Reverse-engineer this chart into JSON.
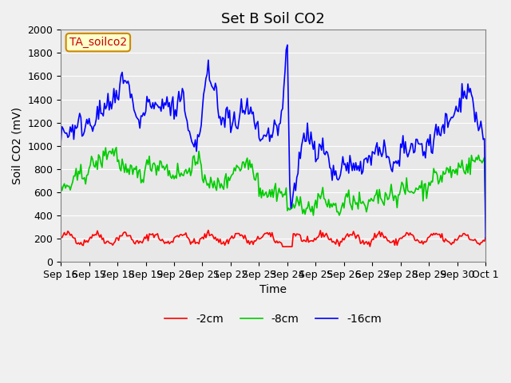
{
  "title": "Set B Soil CO2",
  "ylabel": "Soil CO2 (mV)",
  "xlabel": "Time",
  "ylim": [
    0,
    2000
  ],
  "legend_label": "TA_soilco2",
  "series_labels": [
    "-2cm",
    "-8cm",
    "-16cm"
  ],
  "series_colors": [
    "#ff0000",
    "#00cc00",
    "#0000ff"
  ],
  "xtick_labels": [
    "Sep 16",
    "Sep 17",
    "Sep 18",
    "Sep 19",
    "Sep 20",
    "Sep 21",
    "Sep 22",
    "Sep 23",
    "Sep 24",
    "Sep 25",
    "Sep 26",
    "Sep 27",
    "Sep 28",
    "Sep 29",
    "Sep 30",
    "Oct 1"
  ],
  "title_fontsize": 13,
  "axis_fontsize": 10,
  "tick_fontsize": 9,
  "legend_fontsize": 10,
  "line_width": 1.2
}
